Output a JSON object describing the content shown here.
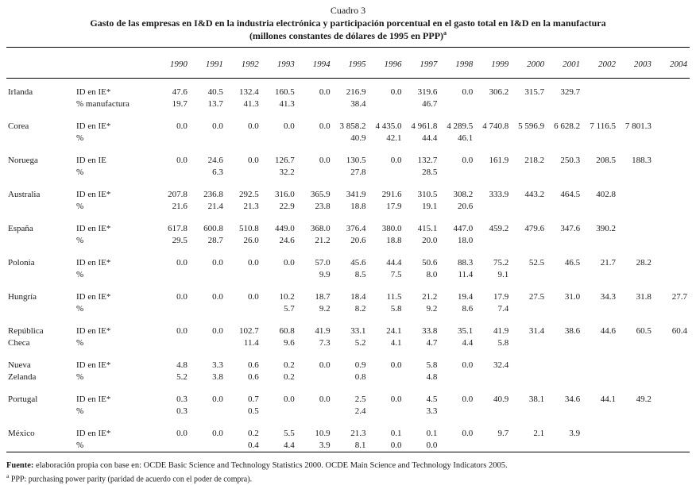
{
  "title": {
    "cuadro": "Cuadro 3",
    "line1": "Gasto de las empresas en I&D en la industria electrónica y participación porcentual en el gasto total en I&D en la manufactura",
    "line2": "(millones constantes de dólares de 1995 en PPP)",
    "superscript": "a"
  },
  "years": [
    "1990",
    "1991",
    "1992",
    "1993",
    "1994",
    "1995",
    "1996",
    "1997",
    "1998",
    "1999",
    "2000",
    "2001",
    "2002",
    "2003",
    "2004"
  ],
  "countries": [
    {
      "name_lines": [
        "Irlanda",
        ""
      ],
      "rows": [
        {
          "label": "ID en IE*",
          "values": [
            "47.6",
            "40.5",
            "132.4",
            "160.5",
            "0.0",
            "216.9",
            "0.0",
            "319.6",
            "0.0",
            "306.2",
            "315.7",
            "329.7",
            "",
            "",
            ""
          ]
        },
        {
          "label": "% manufactura",
          "values": [
            "19.7",
            "13.7",
            "41.3",
            "41.3",
            "",
            "38.4",
            "",
            "46.7",
            "",
            "",
            "",
            "",
            "",
            "",
            ""
          ]
        }
      ]
    },
    {
      "name_lines": [
        "Corea",
        ""
      ],
      "rows": [
        {
          "label": "ID en IE*",
          "values": [
            "0.0",
            "0.0",
            "0.0",
            "0.0",
            "0.0",
            "3 858.2",
            "4 435.0",
            "4 961.8",
            "4 289.5",
            "4 740.8",
            "5 596.9",
            "6 628.2",
            "7 116.5",
            "7 801.3",
            ""
          ]
        },
        {
          "label": "%",
          "values": [
            "",
            "",
            "",
            "",
            "",
            "40.9",
            "42.1",
            "44.4",
            "46.1",
            "",
            "",
            "",
            "",
            "",
            ""
          ]
        }
      ]
    },
    {
      "name_lines": [
        "Noruega",
        ""
      ],
      "rows": [
        {
          "label": "ID en IE",
          "values": [
            "0.0",
            "24.6",
            "0.0",
            "126.7",
            "0.0",
            "130.5",
            "0.0",
            "132.7",
            "0.0",
            "161.9",
            "218.2",
            "250.3",
            "208.5",
            "188.3",
            ""
          ]
        },
        {
          "label": "%",
          "values": [
            "",
            "6.3",
            "",
            "32.2",
            "",
            "27.8",
            "",
            "28.5",
            "",
            "",
            "",
            "",
            "",
            "",
            ""
          ]
        }
      ]
    },
    {
      "name_lines": [
        "Australia",
        ""
      ],
      "rows": [
        {
          "label": "ID en IE*",
          "values": [
            "207.8",
            "236.8",
            "292.5",
            "316.0",
            "365.9",
            "341.9",
            "291.6",
            "310.5",
            "308.2",
            "333.9",
            "443.2",
            "464.5",
            "402.8",
            "",
            ""
          ]
        },
        {
          "label": "%",
          "values": [
            "21.6",
            "21.4",
            "21.3",
            "22.9",
            "23.8",
            "18.8",
            "17.9",
            "19.1",
            "20.6",
            "",
            "",
            "",
            "",
            "",
            ""
          ]
        }
      ]
    },
    {
      "name_lines": [
        "España",
        ""
      ],
      "rows": [
        {
          "label": "ID en IE*",
          "values": [
            "617.8",
            "600.8",
            "510.8",
            "449.0",
            "368.0",
            "376.4",
            "380.0",
            "415.1",
            "447.0",
            "459.2",
            "479.6",
            "347.6",
            "390.2",
            "",
            ""
          ]
        },
        {
          "label": "%",
          "values": [
            "29.5",
            "28.7",
            "26.0",
            "24.6",
            "21.2",
            "20.6",
            "18.8",
            "20.0",
            "18.0",
            "",
            "",
            "",
            "",
            "",
            ""
          ]
        }
      ]
    },
    {
      "name_lines": [
        "Polonia",
        ""
      ],
      "rows": [
        {
          "label": "ID en IE*",
          "values": [
            "0.0",
            "0.0",
            "0.0",
            "0.0",
            "57.0",
            "45.6",
            "44.4",
            "50.6",
            "88.3",
            "75.2",
            "52.5",
            "46.5",
            "21.7",
            "28.2",
            ""
          ]
        },
        {
          "label": "%",
          "values": [
            "",
            "",
            "",
            "",
            "9.9",
            "8.5",
            "7.5",
            "8.0",
            "11.4",
            "9.1",
            "",
            "",
            "",
            "",
            ""
          ]
        }
      ]
    },
    {
      "name_lines": [
        "Hungría",
        ""
      ],
      "rows": [
        {
          "label": "ID en IE*",
          "values": [
            "0.0",
            "0.0",
            "0.0",
            "10.2",
            "18.7",
            "18.4",
            "11.5",
            "21.2",
            "19.4",
            "17.9",
            "27.5",
            "31.0",
            "34.3",
            "31.8",
            "27.7"
          ]
        },
        {
          "label": "%",
          "values": [
            "",
            "",
            "",
            "5.7",
            "9.2",
            "8.2",
            "5.8",
            "9.2",
            "8.6",
            "7.4",
            "",
            "",
            "",
            "",
            ""
          ]
        }
      ]
    },
    {
      "name_lines": [
        "República",
        "Checa"
      ],
      "rows": [
        {
          "label": "ID en IE*",
          "values": [
            "0.0",
            "0.0",
            "102.7",
            "60.8",
            "41.9",
            "33.1",
            "24.1",
            "33.8",
            "35.1",
            "41.9",
            "31.4",
            "38.6",
            "44.6",
            "60.5",
            "60.4"
          ]
        },
        {
          "label": "%",
          "values": [
            "",
            "",
            "11.4",
            "9.6",
            "7.3",
            "5.2",
            "4.1",
            "4.7",
            "4.4",
            "5.8",
            "",
            "",
            "",
            "",
            ""
          ]
        }
      ]
    },
    {
      "name_lines": [
        "Nueva",
        "Zelanda"
      ],
      "rows": [
        {
          "label": "ID en IE*",
          "values": [
            "4.8",
            "3.3",
            "0.6",
            "0.2",
            "0.0",
            "0.9",
            "0.0",
            "5.8",
            "0.0",
            "32.4",
            "",
            "",
            "",
            "",
            ""
          ]
        },
        {
          "label": "%",
          "values": [
            "5.2",
            "3.8",
            "0.6",
            "0.2",
            "",
            "0.8",
            "",
            "4.8",
            "",
            "",
            "",
            "",
            "",
            "",
            ""
          ]
        }
      ]
    },
    {
      "name_lines": [
        "Portugal",
        ""
      ],
      "rows": [
        {
          "label": "ID en IE*",
          "values": [
            "0.3",
            "0.0",
            "0.7",
            "0.0",
            "0.0",
            "2.5",
            "0.0",
            "4.5",
            "0.0",
            "40.9",
            "38.1",
            "34.6",
            "44.1",
            "49.2",
            ""
          ]
        },
        {
          "label": "%",
          "values": [
            "0.3",
            "",
            "0.5",
            "",
            "",
            "2.4",
            "",
            "3.3",
            "",
            "",
            "",
            "",
            "",
            "",
            ""
          ]
        }
      ]
    },
    {
      "name_lines": [
        "México",
        ""
      ],
      "rows": [
        {
          "label": "ID en IE*",
          "values": [
            "0.0",
            "0.0",
            "0.2",
            "5.5",
            "10.9",
            "21.3",
            "0.1",
            "0.1",
            "0.0",
            "9.7",
            "2.1",
            "3.9",
            "",
            "",
            ""
          ]
        },
        {
          "label": "%",
          "values": [
            "",
            "",
            "0.4",
            "4.4",
            "3.9",
            "8.1",
            "0.0",
            "0.0",
            "",
            "",
            "",
            "",
            "",
            "",
            ""
          ]
        }
      ]
    }
  ],
  "footer": {
    "fuente_label": "Fuente:",
    "fuente_text": " elaboración propia con base en: OCDE Basic Science and Technology Statistics 2000. OCDE Main Science and Technology Indicators 2005.",
    "note_sup": "a",
    "note_text": " PPP: purchasing power parity (paridad de acuerdo con el poder de compra)."
  }
}
